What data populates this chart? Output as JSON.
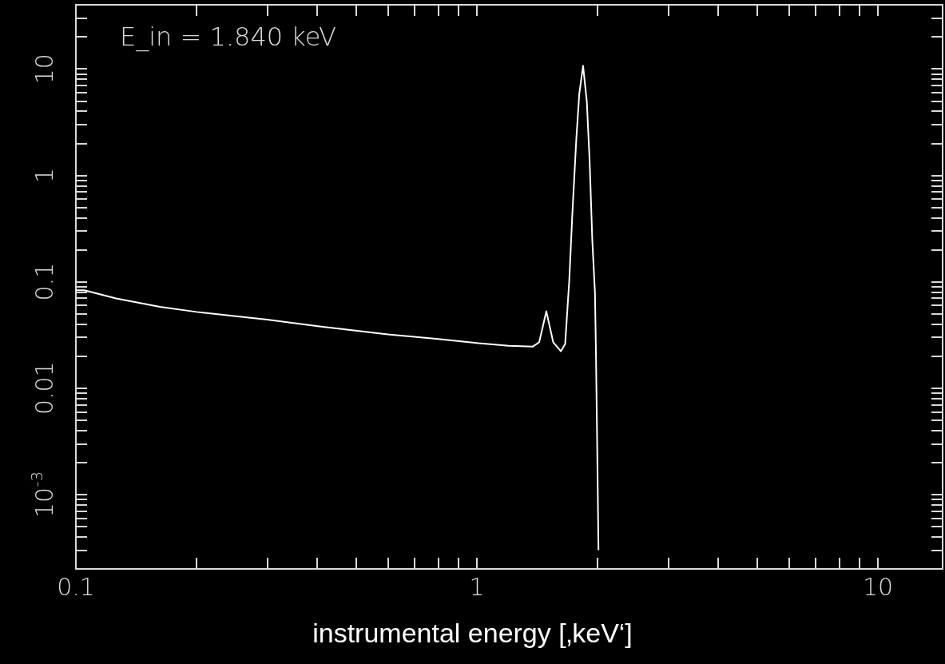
{
  "chart_data": {
    "type": "line",
    "xlabel": "instrumental energy [‚keV‘]",
    "annotations": [
      "E_in = 1.840 keV"
    ],
    "log": "xy",
    "grid": false,
    "marker": "none",
    "line_style": "solid",
    "xlim": [
      0.1,
      14.5
    ],
    "ylim": [
      0.0002,
      40
    ],
    "xticks": [
      0.1,
      {
        "value": 0.2,
        "label": null
      },
      {
        "value": 0.3,
        "label": null
      },
      {
        "value": 0.4,
        "label": null
      },
      {
        "value": 0.5,
        "label": null
      },
      {
        "value": 0.6,
        "label": null
      },
      {
        "value": 0.7,
        "label": null
      },
      {
        "value": 0.8,
        "label": null
      },
      {
        "value": 0.9,
        "label": null
      },
      1,
      {
        "value": 2,
        "label": null
      },
      {
        "value": 3,
        "label": null
      },
      {
        "value": 4,
        "label": null
      },
      {
        "value": 5,
        "label": null
      },
      {
        "value": 6,
        "label": null
      },
      {
        "value": 7,
        "label": null
      },
      {
        "value": 8,
        "label": null
      },
      {
        "value": 9,
        "label": null
      },
      10
    ],
    "yticks": [
      {
        "value": 0.0003,
        "label": null
      },
      {
        "value": 0.0004,
        "label": null
      },
      {
        "value": 0.0005,
        "label": null
      },
      {
        "value": 0.0006,
        "label": null
      },
      {
        "value": 0.0007,
        "label": null
      },
      {
        "value": 0.0008,
        "label": null
      },
      {
        "value": 0.0009,
        "label": null
      },
      {
        "value": 0.001,
        "label": "10$^{-3}$"
      },
      {
        "value": 0.002,
        "label": null
      },
      {
        "value": 0.003,
        "label": null
      },
      {
        "value": 0.004,
        "label": null
      },
      {
        "value": 0.005,
        "label": null
      },
      {
        "value": 0.006,
        "label": null
      },
      {
        "value": 0.007,
        "label": null
      },
      {
        "value": 0.008,
        "label": null
      },
      {
        "value": 0.009,
        "label": null
      },
      0.01,
      {
        "value": 0.02,
        "label": null
      },
      {
        "value": 0.03,
        "label": null
      },
      {
        "value": 0.04,
        "label": null
      },
      {
        "value": 0.05,
        "label": null
      },
      {
        "value": 0.06,
        "label": null
      },
      {
        "value": 0.07,
        "label": null
      },
      {
        "value": 0.08,
        "label": null
      },
      {
        "value": 0.09,
        "label": null
      },
      0.1,
      {
        "value": 0.2,
        "label": null
      },
      {
        "value": 0.3,
        "label": null
      },
      {
        "value": 0.4,
        "label": null
      },
      {
        "value": 0.5,
        "label": null
      },
      {
        "value": 0.6,
        "label": null
      },
      {
        "value": 0.7,
        "label": null
      },
      {
        "value": 0.8,
        "label": null
      },
      {
        "value": 0.9,
        "label": null
      },
      1,
      {
        "value": 2,
        "label": null
      },
      {
        "value": 3,
        "label": null
      },
      {
        "value": 4,
        "label": null
      },
      {
        "value": 5,
        "label": null
      },
      {
        "value": 6,
        "label": null
      },
      {
        "value": 7,
        "label": null
      },
      {
        "value": 8,
        "label": null
      },
      {
        "value": 9,
        "label": null
      },
      10,
      {
        "value": 20,
        "label": null
      },
      {
        "value": 30,
        "label": null
      }
    ],
    "series": [
      {
        "color": "#ffffff",
        "x": [
          0.1,
          0.105,
          0.126,
          0.162,
          0.2,
          0.3,
          0.405,
          0.6,
          0.8,
          1.01,
          1.2,
          1.38,
          1.43,
          1.49,
          1.55,
          1.62,
          1.66,
          1.7,
          1.73,
          1.77,
          1.8,
          1.84,
          1.88,
          1.91,
          1.94,
          1.97,
          1.98,
          1.99,
          2.0,
          2.01
        ],
        "values": [
          0.083,
          0.083,
          0.0695,
          0.058,
          0.052,
          0.044,
          0.038,
          0.032,
          0.029,
          0.0264,
          0.025,
          0.0246,
          0.027,
          0.0527,
          0.027,
          0.0222,
          0.026,
          0.104,
          0.435,
          2.2,
          5.8,
          10.7,
          4.9,
          1.39,
          0.246,
          0.078,
          0.0245,
          0.0062,
          0.00144,
          0.0003
        ]
      }
    ]
  }
}
